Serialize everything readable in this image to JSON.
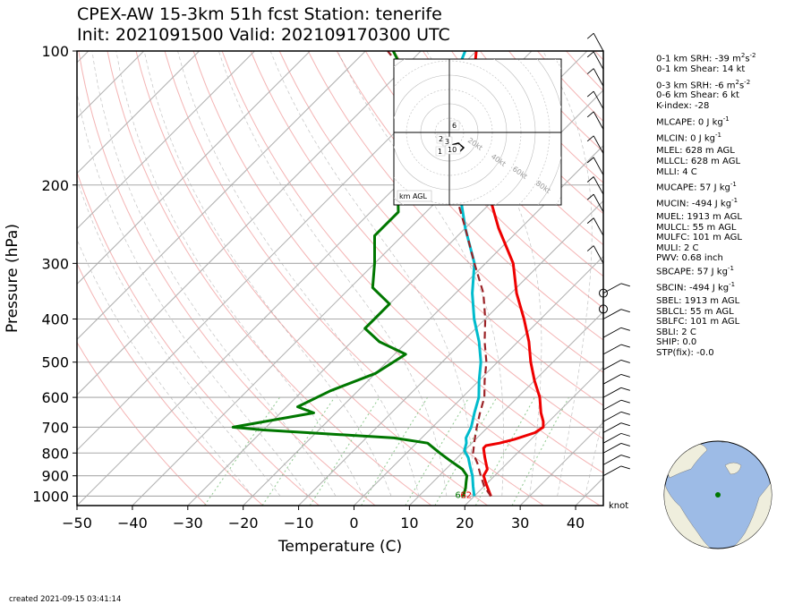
{
  "header": {
    "title_line1": "CPEX-AW 15-3km  51h fcst  Station: tenerife",
    "title_line2": "Init: 2021091500  Valid: 202109170300 UTC"
  },
  "chart_data": {
    "type": "line",
    "subtype": "skew-t log-p sounding",
    "xlabel": "Temperature (C)",
    "ylabel": "Pressure (hPa)",
    "xlim": [
      -50,
      45
    ],
    "ylim": [
      1050,
      100
    ],
    "y_scale": "log",
    "x_ticks": [
      -50,
      -40,
      -30,
      -20,
      -10,
      0,
      10,
      20,
      30,
      40
    ],
    "y_ticks": [
      100,
      200,
      300,
      400,
      500,
      600,
      700,
      800,
      900,
      1000
    ],
    "grid": true,
    "series": [
      {
        "name": "",
        "role": "temperature",
        "color": "#ee0000",
        "points": [
          [
            1000,
            23
          ],
          [
            940,
            20
          ],
          [
            900,
            18
          ],
          [
            870,
            17.5
          ],
          [
            850,
            16.5
          ],
          [
            820,
            15
          ],
          [
            800,
            14
          ],
          [
            780,
            13
          ],
          [
            770,
            13
          ],
          [
            760,
            15
          ],
          [
            745,
            17
          ],
          [
            720,
            19.5
          ],
          [
            700,
            20
          ],
          [
            680,
            19
          ],
          [
            650,
            17
          ],
          [
            600,
            14
          ],
          [
            550,
            10
          ],
          [
            500,
            6
          ],
          [
            450,
            2
          ],
          [
            400,
            -3
          ],
          [
            350,
            -9
          ],
          [
            300,
            -15
          ],
          [
            250,
            -24
          ],
          [
            200,
            -34
          ],
          [
            150,
            -45
          ],
          [
            130,
            -52
          ],
          [
            110,
            -57
          ],
          [
            100,
            -60
          ]
        ]
      },
      {
        "name": "",
        "role": "dewpoint",
        "color": "#007700",
        "points": [
          [
            1000,
            18
          ],
          [
            960,
            17
          ],
          [
            930,
            16
          ],
          [
            900,
            15
          ],
          [
            870,
            13
          ],
          [
            830,
            9
          ],
          [
            800,
            6
          ],
          [
            760,
            2
          ],
          [
            740,
            -5
          ],
          [
            710,
            -30
          ],
          [
            700,
            -36
          ],
          [
            650,
            -24
          ],
          [
            630,
            -28
          ],
          [
            580,
            -25
          ],
          [
            530,
            -20
          ],
          [
            480,
            -18
          ],
          [
            450,
            -25
          ],
          [
            420,
            -30
          ],
          [
            400,
            -30
          ],
          [
            370,
            -30
          ],
          [
            340,
            -36
          ],
          [
            300,
            -40
          ],
          [
            260,
            -45
          ],
          [
            230,
            -45
          ],
          [
            200,
            -50
          ],
          [
            170,
            -55
          ],
          [
            150,
            -60
          ],
          [
            130,
            -64
          ],
          [
            110,
            -70
          ],
          [
            100,
            -75
          ]
        ]
      },
      {
        "name": "",
        "role": "wetbulb",
        "color": "#00bbcc",
        "points": [
          [
            1000,
            20
          ],
          [
            950,
            18
          ],
          [
            900,
            16
          ],
          [
            860,
            14
          ],
          [
            820,
            12
          ],
          [
            790,
            10
          ],
          [
            760,
            9
          ],
          [
            740,
            8
          ],
          [
            700,
            7
          ],
          [
            650,
            5
          ],
          [
            600,
            3
          ],
          [
            550,
            0
          ],
          [
            500,
            -3
          ],
          [
            450,
            -7
          ],
          [
            400,
            -12
          ],
          [
            350,
            -17
          ],
          [
            300,
            -22
          ],
          [
            250,
            -30
          ],
          [
            200,
            -39
          ],
          [
            170,
            -45
          ],
          [
            150,
            -50
          ],
          [
            130,
            -55
          ],
          [
            110,
            -60
          ],
          [
            100,
            -62
          ]
        ]
      },
      {
        "name": "",
        "role": "parcel",
        "color": "#9b2226",
        "dashed": true,
        "points": [
          [
            1000,
            23
          ],
          [
            950,
            20
          ],
          [
            900,
            17.5
          ],
          [
            870,
            16
          ],
          [
            850,
            15
          ],
          [
            800,
            12
          ],
          [
            750,
            10
          ],
          [
            700,
            8
          ],
          [
            650,
            6
          ],
          [
            600,
            4
          ],
          [
            550,
            1
          ],
          [
            500,
            -2
          ],
          [
            450,
            -6
          ],
          [
            400,
            -10
          ],
          [
            350,
            -15
          ],
          [
            300,
            -22
          ],
          [
            250,
            -30
          ],
          [
            200,
            -40
          ],
          [
            170,
            -48
          ],
          [
            150,
            -54
          ],
          [
            130,
            -62
          ],
          [
            110,
            -70
          ],
          [
            100,
            -76
          ]
        ]
      }
    ],
    "surface_labels": [
      {
        "text": "62",
        "color": "#007700"
      },
      {
        "text": "62",
        "color": "#ee0000"
      }
    ],
    "wind_unit_label": "knot",
    "hodograph": {
      "range_labels": [
        "20kt",
        "40kt",
        "60kt",
        "80kt"
      ],
      "height_labels": [
        "6",
        "2",
        "3",
        "1",
        "10"
      ],
      "corner_label": "km AGL"
    },
    "indices": [
      {
        "id": "srh01",
        "label": "0-1 km SRH: -39 m",
        "sup": "2",
        "mid": "s",
        "sup2": "-2",
        "gap": false
      },
      {
        "id": "shear01",
        "label": "0-1 km Shear: 14 kt",
        "gap": false
      },
      {
        "id": "srh03",
        "label": "0-3 km SRH: -6 m",
        "sup": "2",
        "mid": "s",
        "sup2": "-2",
        "gap": true
      },
      {
        "id": "shear06",
        "label": "0-6 km Shear: 6 kt",
        "gap": false
      },
      {
        "id": "kindex",
        "label": "K-index: -28",
        "gap": false
      },
      {
        "id": "mlcape",
        "label": "MLCAPE: 0 J kg",
        "sup2": "-1",
        "gap": true
      },
      {
        "id": "mlcin",
        "label": "MLCIN: 0 J kg",
        "sup2": "-1",
        "gap": true
      },
      {
        "id": "mlel",
        "label": "MLEL: 628 m AGL",
        "gap": true
      },
      {
        "id": "mllcl",
        "label": "MLLCL: 628 m AGL",
        "gap": false
      },
      {
        "id": "mlli",
        "label": "MLLI: 4 C",
        "gap": false
      },
      {
        "id": "mucape",
        "label": "MUCAPE: 57 J kg",
        "sup2": "-1",
        "gap": true
      },
      {
        "id": "mucin",
        "label": "MUCIN: -494 J kg",
        "sup2": "-1",
        "gap": true
      },
      {
        "id": "muel",
        "label": "MUEL: 1913 m AGL",
        "gap": true
      },
      {
        "id": "mulcl",
        "label": "MULCL: 55 m AGL",
        "gap": false
      },
      {
        "id": "mulfc",
        "label": "MULFC: 101 m AGL",
        "gap": false
      },
      {
        "id": "muli",
        "label": "MULI: 2 C",
        "gap": false
      },
      {
        "id": "pwv",
        "label": "PWV: 0.68 inch",
        "gap": false
      },
      {
        "id": "sbcape",
        "label": "SBCAPE: 57 J kg",
        "sup2": "-1",
        "gap": false
      },
      {
        "id": "sbcin",
        "label": "SBCIN: -494 J kg",
        "sup2": "-1",
        "gap": true
      },
      {
        "id": "sbel",
        "label": "SBEL: 1913 m AGL",
        "gap": true
      },
      {
        "id": "sblcl",
        "label": "SBLCL: 55 m AGL",
        "gap": false
      },
      {
        "id": "sblfc",
        "label": "SBLFC: 101 m AGL",
        "gap": false
      },
      {
        "id": "sbli",
        "label": "SBLI: 2 C",
        "gap": false
      },
      {
        "id": "ship",
        "label": "SHIP: 0.0",
        "gap": false
      },
      {
        "id": "stp",
        "label": "STP(fix): -0.0",
        "gap": false
      }
    ]
  },
  "footer": {
    "created": "created 2021-09-15 03:41:14"
  },
  "colors": {
    "temperature": "#ee0000",
    "dewpoint": "#007700",
    "wetbulb": "#00bbcc",
    "parcel": "#9b2226",
    "ocean": "#9dbbe6",
    "land": "#efeedd",
    "dry_adiabat": "#f4b4b4",
    "isotherm": "#b4b4b4",
    "mixing_ratio": "#8fc98f"
  }
}
